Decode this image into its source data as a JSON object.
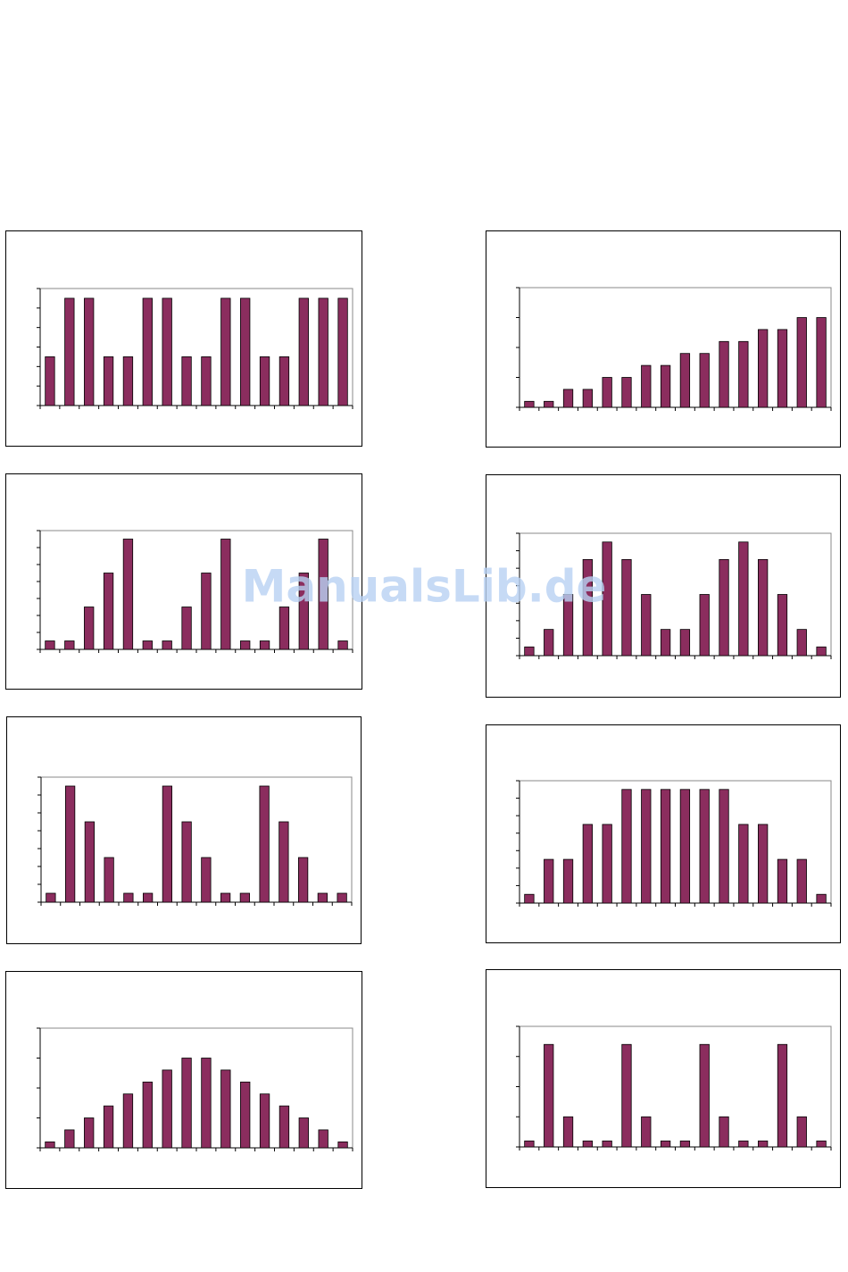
{
  "watermark": "ManualsLib.de",
  "chart_data": [
    {
      "type": "bar",
      "categories": [
        null,
        null,
        null,
        null,
        null,
        null,
        null,
        null,
        null,
        null,
        null,
        null,
        null,
        null,
        null,
        null
      ],
      "values": [
        2.5,
        5.5,
        5.5,
        2.5,
        2.5,
        5.5,
        5.5,
        2.5,
        2.5,
        5.5,
        5.5,
        2.5,
        2.5,
        5.5,
        5.5,
        5.5
      ],
      "color": "#8b2d5e",
      "ylim": [
        0,
        6
      ],
      "yticks": [
        0,
        1,
        2,
        3,
        4,
        5,
        6
      ]
    },
    {
      "type": "bar",
      "categories": [
        null,
        null,
        null,
        null,
        null,
        null,
        null,
        null,
        null,
        null,
        null,
        null,
        null,
        null,
        null,
        null
      ],
      "values": [
        0.2,
        0.2,
        0.6,
        0.6,
        1,
        1,
        1.4,
        1.4,
        1.8,
        1.8,
        2.2,
        2.2,
        2.6,
        2.6,
        3,
        3
      ],
      "color": "#8b2d5e",
      "ylim": [
        0,
        4
      ],
      "yticks": [
        0,
        1,
        2,
        3,
        4
      ]
    },
    {
      "type": "bar",
      "categories": [
        null,
        null,
        null,
        null,
        null,
        null,
        null,
        null,
        null,
        null,
        null,
        null,
        null,
        null,
        null,
        null
      ],
      "values": [
        0.5,
        0.5,
        2.5,
        4.5,
        6.5,
        0.5,
        0.5,
        2.5,
        4.5,
        6.5,
        0.5,
        0.5,
        2.5,
        4.5,
        6.5,
        0.5
      ],
      "color": "#8b2d5e",
      "ylim": [
        0,
        7
      ],
      "yticks": [
        0,
        1,
        2,
        3,
        4,
        5,
        6,
        7
      ]
    },
    {
      "type": "bar",
      "categories": [
        null,
        null,
        null,
        null,
        null,
        null,
        null,
        null,
        null,
        null,
        null,
        null,
        null,
        null,
        null,
        null
      ],
      "values": [
        0.5,
        1.5,
        3.5,
        5.5,
        6.5,
        5.5,
        3.5,
        1.5,
        1.5,
        3.5,
        5.5,
        6.5,
        5.5,
        3.5,
        1.5,
        0.5
      ],
      "color": "#8b2d5e",
      "ylim": [
        0,
        7
      ],
      "yticks": [
        0,
        1,
        2,
        3,
        4,
        5,
        6,
        7
      ]
    },
    {
      "type": "bar",
      "categories": [
        null,
        null,
        null,
        null,
        null,
        null,
        null,
        null,
        null,
        null,
        null,
        null,
        null,
        null,
        null,
        null
      ],
      "values": [
        0.5,
        6.5,
        4.5,
        2.5,
        0.5,
        0.5,
        6.5,
        4.5,
        2.5,
        0.5,
        0.5,
        6.5,
        4.5,
        2.5,
        0.5,
        0.5
      ],
      "color": "#8b2d5e",
      "ylim": [
        0,
        7
      ],
      "yticks": [
        0,
        1,
        2,
        3,
        4,
        5,
        6,
        7
      ]
    },
    {
      "type": "bar",
      "categories": [
        null,
        null,
        null,
        null,
        null,
        null,
        null,
        null,
        null,
        null,
        null,
        null,
        null,
        null,
        null,
        null
      ],
      "values": [
        0.5,
        2.5,
        2.5,
        4.5,
        4.5,
        6.5,
        6.5,
        6.5,
        6.5,
        6.5,
        6.5,
        4.5,
        4.5,
        2.5,
        2.5,
        0.5
      ],
      "color": "#8b2d5e",
      "ylim": [
        0,
        7
      ],
      "yticks": [
        0,
        1,
        2,
        3,
        4,
        5,
        6,
        7
      ]
    },
    {
      "type": "bar",
      "categories": [
        null,
        null,
        null,
        null,
        null,
        null,
        null,
        null,
        null,
        null,
        null,
        null,
        null,
        null,
        null,
        null
      ],
      "values": [
        0.2,
        0.6,
        1,
        1.4,
        1.8,
        2.2,
        2.6,
        3,
        3,
        2.6,
        2.2,
        1.8,
        1.4,
        1,
        0.6,
        0.2
      ],
      "color": "#8b2d5e",
      "ylim": [
        0,
        4
      ],
      "yticks": [
        0,
        1,
        2,
        3,
        4
      ]
    },
    {
      "type": "bar",
      "categories": [
        null,
        null,
        null,
        null,
        null,
        null,
        null,
        null,
        null,
        null,
        null,
        null,
        null,
        null,
        null,
        null
      ],
      "values": [
        0.2,
        3.4,
        1,
        0.2,
        0.2,
        3.4,
        1,
        0.2,
        0.2,
        3.4,
        1,
        0.2,
        0.2,
        3.4,
        1,
        0.2
      ],
      "color": "#8b2d5e",
      "ylim": [
        0,
        4
      ],
      "yticks": [
        0,
        1,
        2,
        3,
        4
      ]
    }
  ]
}
